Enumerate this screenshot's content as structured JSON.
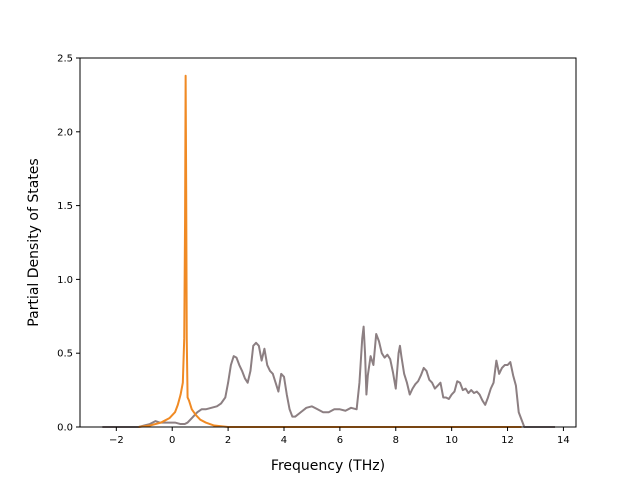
{
  "chart_data": {
    "type": "line",
    "title": "",
    "xlabel": "Frequency (THz)",
    "ylabel": "Partial Density of States",
    "xlim": [
      -3.3,
      14.45
    ],
    "ylim": [
      0,
      2.5
    ],
    "xticks": [
      -2,
      0,
      2,
      4,
      6,
      8,
      10,
      12,
      14
    ],
    "yticks": [
      0.0,
      0.5,
      1.0,
      1.5,
      2.0,
      2.5
    ],
    "xtick_labels": [
      "−2",
      "0",
      "2",
      "4",
      "6",
      "8",
      "10",
      "12",
      "14"
    ],
    "ytick_labels": [
      "0.0",
      "0.5",
      "1.0",
      "1.5",
      "2.0",
      "2.5"
    ],
    "grid": false,
    "legend": "none",
    "series": [
      {
        "color": "#8c7f82",
        "x": [
          -2.5,
          -1.2,
          -1.0,
          -0.8,
          -0.6,
          -0.45,
          -0.3,
          -0.1,
          0.1,
          0.3,
          0.45,
          0.55,
          0.7,
          0.9,
          1.05,
          1.2,
          1.4,
          1.6,
          1.75,
          1.9,
          2.0,
          2.1,
          2.2,
          2.3,
          2.4,
          2.5,
          2.6,
          2.7,
          2.8,
          2.9,
          3.0,
          3.1,
          3.2,
          3.3,
          3.4,
          3.5,
          3.6,
          3.7,
          3.8,
          3.9,
          4.0,
          4.1,
          4.2,
          4.3,
          4.4,
          4.6,
          4.8,
          5.0,
          5.2,
          5.4,
          5.6,
          5.8,
          6.0,
          6.2,
          6.4,
          6.6,
          6.7,
          6.8,
          6.85,
          6.9,
          6.95,
          7.0,
          7.1,
          7.2,
          7.3,
          7.4,
          7.5,
          7.6,
          7.7,
          7.8,
          7.9,
          8.0,
          8.1,
          8.15,
          8.2,
          8.3,
          8.4,
          8.5,
          8.6,
          8.7,
          8.8,
          8.9,
          9.0,
          9.1,
          9.2,
          9.3,
          9.4,
          9.5,
          9.6,
          9.7,
          9.8,
          9.9,
          10.0,
          10.1,
          10.2,
          10.3,
          10.4,
          10.5,
          10.6,
          10.7,
          10.8,
          10.9,
          11.0,
          11.1,
          11.2,
          11.3,
          11.4,
          11.5,
          11.6,
          11.7,
          11.8,
          11.9,
          12.0,
          12.1,
          12.2,
          12.3,
          12.4,
          12.6,
          13.0,
          13.7
        ],
        "y": [
          0.0,
          0.0,
          0.01,
          0.02,
          0.04,
          0.03,
          0.03,
          0.03,
          0.03,
          0.02,
          0.02,
          0.03,
          0.06,
          0.1,
          0.12,
          0.12,
          0.13,
          0.14,
          0.16,
          0.2,
          0.3,
          0.42,
          0.48,
          0.47,
          0.42,
          0.38,
          0.33,
          0.3,
          0.38,
          0.55,
          0.57,
          0.55,
          0.45,
          0.53,
          0.42,
          0.38,
          0.36,
          0.3,
          0.24,
          0.36,
          0.34,
          0.22,
          0.12,
          0.07,
          0.07,
          0.1,
          0.13,
          0.14,
          0.12,
          0.1,
          0.1,
          0.12,
          0.12,
          0.11,
          0.13,
          0.12,
          0.3,
          0.6,
          0.68,
          0.5,
          0.22,
          0.35,
          0.48,
          0.42,
          0.63,
          0.58,
          0.5,
          0.47,
          0.49,
          0.46,
          0.37,
          0.26,
          0.5,
          0.55,
          0.48,
          0.36,
          0.3,
          0.22,
          0.26,
          0.29,
          0.31,
          0.35,
          0.4,
          0.38,
          0.32,
          0.3,
          0.26,
          0.28,
          0.3,
          0.2,
          0.2,
          0.19,
          0.22,
          0.24,
          0.31,
          0.3,
          0.25,
          0.26,
          0.23,
          0.25,
          0.23,
          0.24,
          0.22,
          0.18,
          0.15,
          0.2,
          0.26,
          0.3,
          0.45,
          0.36,
          0.4,
          0.42,
          0.42,
          0.44,
          0.35,
          0.28,
          0.1,
          0.0,
          0.0,
          0.0
        ]
      },
      {
        "color": "#f08a24",
        "x": [
          -1.2,
          -0.8,
          -0.4,
          -0.1,
          0.1,
          0.2,
          0.3,
          0.38,
          0.43,
          0.46,
          0.48,
          0.5,
          0.52,
          0.55,
          0.6,
          0.7,
          0.85,
          1.0,
          1.2,
          1.5,
          2.0,
          3.0,
          6.0,
          9.0,
          12.5
        ],
        "y": [
          0.0,
          0.01,
          0.03,
          0.06,
          0.1,
          0.15,
          0.22,
          0.3,
          0.6,
          1.4,
          2.38,
          1.6,
          0.6,
          0.2,
          0.18,
          0.12,
          0.08,
          0.05,
          0.03,
          0.01,
          0.0,
          0.0,
          0.0,
          0.0,
          0.0
        ]
      }
    ]
  }
}
